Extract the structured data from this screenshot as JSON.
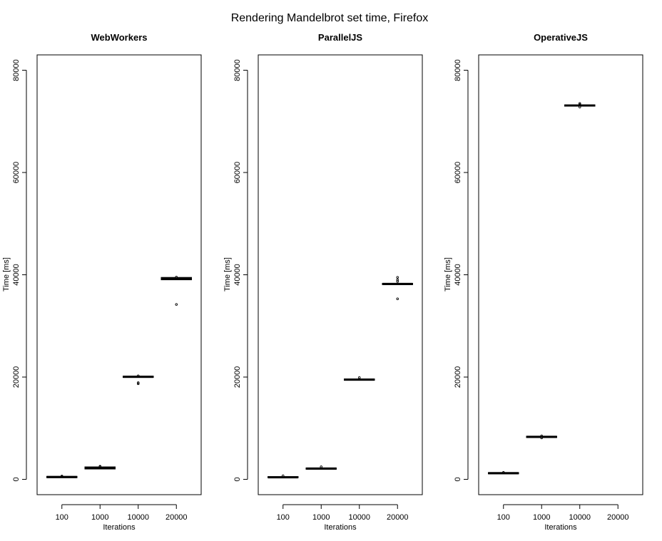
{
  "title": "Rendering Mandelbrot set time, Firefox",
  "chart_data": [
    {
      "type": "box",
      "title": "WebWorkers",
      "xlabel": "Iterations",
      "ylabel": "Time [ms]",
      "categories": [
        "100",
        "1000",
        "10000",
        "20000"
      ],
      "ylim": [
        -3000,
        83000
      ],
      "yticks": [
        0,
        20000,
        40000,
        60000,
        80000
      ],
      "boxes": [
        {
          "category": "100",
          "q1": 350,
          "median": 450,
          "q3": 550,
          "outliers": [
            550,
            650
          ]
        },
        {
          "category": "1000",
          "q1": 2050,
          "median": 2200,
          "q3": 2400,
          "outliers": [
            2450,
            2550
          ]
        },
        {
          "category": "10000",
          "q1": 19950,
          "median": 20050,
          "q3": 20150,
          "outliers": [
            20250,
            18700,
            18900
          ]
        },
        {
          "category": "20000",
          "q1": 39050,
          "median": 39250,
          "q3": 39450,
          "outliers": [
            39550,
            34200
          ]
        }
      ]
    },
    {
      "type": "box",
      "title": "ParallelJS",
      "xlabel": "Iterations",
      "ylabel": "Time [ms]",
      "categories": [
        "100",
        "1000",
        "10000",
        "20000"
      ],
      "ylim": [
        -3000,
        83000
      ],
      "yticks": [
        0,
        20000,
        40000,
        60000,
        80000
      ],
      "boxes": [
        {
          "category": "100",
          "q1": 350,
          "median": 400,
          "q3": 500,
          "outliers": [
            700
          ]
        },
        {
          "category": "1000",
          "q1": 2000,
          "median": 2100,
          "q3": 2200,
          "outliers": [
            2450
          ]
        },
        {
          "category": "10000",
          "q1": 19400,
          "median": 19500,
          "q3": 19600,
          "outliers": [
            19900
          ]
        },
        {
          "category": "20000",
          "q1": 38100,
          "median": 38200,
          "q3": 38300,
          "outliers": [
            38700,
            39000,
            39500,
            35300
          ]
        }
      ]
    },
    {
      "type": "box",
      "title": "OperativeJS",
      "xlabel": "Iterations",
      "ylabel": "Time [ms]",
      "categories": [
        "100",
        "1000",
        "10000",
        "20000"
      ],
      "ylim": [
        -3000,
        83000
      ],
      "yticks": [
        0,
        20000,
        40000,
        60000,
        80000
      ],
      "boxes": [
        {
          "category": "100",
          "q1": 1100,
          "median": 1200,
          "q3": 1300,
          "outliers": [
            1350
          ]
        },
        {
          "category": "1000",
          "q1": 8200,
          "median": 8300,
          "q3": 8400,
          "outliers": [
            8100,
            8500
          ]
        },
        {
          "category": "10000",
          "q1": 73000,
          "median": 73100,
          "q3": 73200,
          "outliers": [
            73300,
            73500,
            72800
          ]
        }
      ]
    }
  ]
}
